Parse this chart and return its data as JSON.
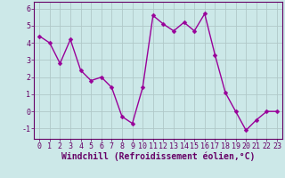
{
  "x": [
    0,
    1,
    2,
    3,
    4,
    5,
    6,
    7,
    8,
    9,
    10,
    11,
    12,
    13,
    14,
    15,
    16,
    17,
    18,
    19,
    20,
    21,
    22,
    23
  ],
  "y": [
    4.4,
    4.0,
    2.8,
    4.2,
    2.4,
    1.8,
    2.0,
    1.4,
    -0.3,
    -0.7,
    1.4,
    5.6,
    5.1,
    4.7,
    5.2,
    4.7,
    5.7,
    3.3,
    1.1,
    0.0,
    -1.1,
    -0.5,
    0.0,
    0.0
  ],
  "line_color": "#990099",
  "marker": "D",
  "marker_size": 2.5,
  "linewidth": 1.0,
  "bg_color": "#cce8e8",
  "grid_color": "#b0c8c8",
  "xlabel": "Windchill (Refroidissement éolien,°C)",
  "xlabel_fontsize": 7,
  "xlim": [
    -0.5,
    23.5
  ],
  "ylim": [
    -1.6,
    6.4
  ],
  "yticks": [
    -1,
    0,
    1,
    2,
    3,
    4,
    5,
    6
  ],
  "xticks": [
    0,
    1,
    2,
    3,
    4,
    5,
    6,
    7,
    8,
    9,
    10,
    11,
    12,
    13,
    14,
    15,
    16,
    17,
    18,
    19,
    20,
    21,
    22,
    23
  ],
  "tick_fontsize": 6,
  "spine_color": "#660066",
  "text_color": "#660066"
}
